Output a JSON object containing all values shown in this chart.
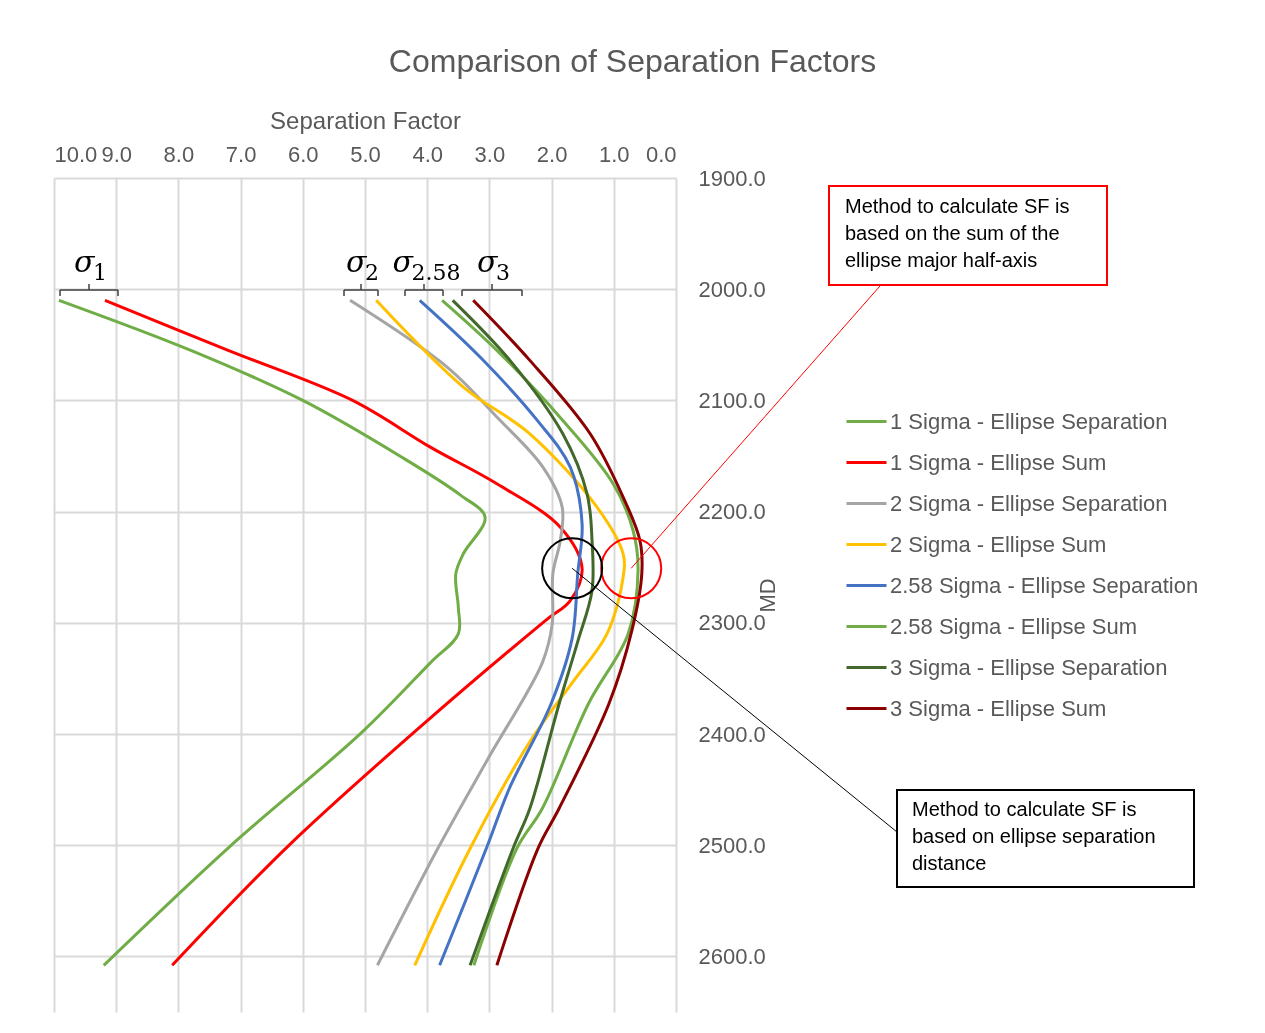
{
  "chart_data": {
    "type": "line",
    "title": "Comparison of Separation Factors",
    "xlabel": "Separation Factor",
    "ylabel": "MD",
    "xlim": [
      10,
      0
    ],
    "xticks": [
      {
        "value": 10,
        "label": "10.0"
      },
      {
        "value": 9,
        "label": "9.0"
      },
      {
        "value": 8,
        "label": "8.0"
      },
      {
        "value": 7,
        "label": "7.0"
      },
      {
        "value": 6,
        "label": "6.0"
      },
      {
        "value": 5,
        "label": "5.0"
      },
      {
        "value": 4,
        "label": "4.0"
      },
      {
        "value": 3,
        "label": "3.0"
      },
      {
        "value": 2,
        "label": "2.0"
      },
      {
        "value": 1,
        "label": "1.0"
      },
      {
        "value": 0,
        "label": "0.0"
      }
    ],
    "ylim": [
      2650,
      1900
    ],
    "yticks": [
      {
        "value": 1900,
        "label": "1900.0"
      },
      {
        "value": 2000,
        "label": "2000.0"
      },
      {
        "value": 2100,
        "label": "2100.0"
      },
      {
        "value": 2200,
        "label": "2200.0"
      },
      {
        "value": 2300,
        "label": "2300.0"
      },
      {
        "value": 2400,
        "label": "2400.0"
      },
      {
        "value": 2500,
        "label": "2500.0"
      },
      {
        "value": 2600,
        "label": "2600.0"
      }
    ],
    "grid": true,
    "legend": "right",
    "series": [
      {
        "name": "1 Sigma - Ellipse Separation",
        "color": "#70ad47",
        "x": [
          9.92,
          7.8,
          6.0,
          4.44,
          3.47,
          3.07,
          3.42,
          3.54,
          3.5,
          3.5,
          3.95,
          5.06,
          7.17,
          9.2
        ],
        "values": [
          2010,
          2055,
          2100,
          2150,
          2185,
          2205,
          2238,
          2256,
          2286,
          2310,
          2336,
          2399,
          2501,
          2608
        ]
      },
      {
        "name": "1 Sigma - Ellipse Sum",
        "color": "#ff0000",
        "x": [
          9.18,
          7.2,
          5.2,
          3.95,
          2.88,
          1.86,
          1.51,
          1.7,
          2.1,
          4.08,
          6.24,
          8.1
        ],
        "values": [
          2010,
          2055,
          2100,
          2142,
          2175,
          2214,
          2251,
          2280,
          2298,
          2392,
          2501,
          2608
        ]
      },
      {
        "name": "2 Sigma - Ellipse Separation",
        "color": "#a5a5a5",
        "x": [
          5.24,
          3.68,
          2.88,
          2.14,
          1.83,
          1.86,
          1.98,
          1.99,
          2.15,
          3.02,
          3.83,
          4.8
        ],
        "values": [
          2010,
          2070,
          2115,
          2160,
          2196,
          2226,
          2256,
          2301,
          2336,
          2422,
          2503,
          2608
        ]
      },
      {
        "name": "2 Sigma - Ellipse Sum",
        "color": "#ffc000",
        "x": [
          4.82,
          3.42,
          2.35,
          1.27,
          0.85,
          0.85,
          1.11,
          1.67,
          2.35,
          3.31,
          4.2
        ],
        "values": [
          2010,
          2088,
          2130,
          2196,
          2238,
          2259,
          2310,
          2354,
          2407,
          2503,
          2608
        ]
      },
      {
        "name": "2.58 Sigma - Ellipse Separation",
        "color": "#4472c4",
        "x": [
          4.12,
          3.15,
          2.23,
          1.7,
          1.51,
          1.58,
          1.67,
          2.01,
          2.68,
          3.05,
          3.8
        ],
        "values": [
          2010,
          2061,
          2118,
          2160,
          2211,
          2256,
          2314,
          2373,
          2449,
          2503,
          2608
        ]
      },
      {
        "name": "2.58 Sigma - Ellipse Sum",
        "color": "#70ad47",
        "x": [
          3.76,
          2.88,
          1.82,
          1.01,
          0.69,
          0.61,
          0.77,
          1.41,
          2.15,
          2.56,
          3.25
        ],
        "values": [
          2010,
          2055,
          2118,
          2175,
          2217,
          2253,
          2310,
          2373,
          2467,
          2503,
          2608
        ]
      },
      {
        "name": "3 Sigma - Ellipse Separation",
        "color": "#43682b",
        "x": [
          3.59,
          2.67,
          1.82,
          1.43,
          1.35,
          1.35,
          1.58,
          1.88,
          2.35,
          2.62,
          3.31
        ],
        "values": [
          2010,
          2064,
          2130,
          2184,
          2226,
          2271,
          2317,
          2373,
          2467,
          2503,
          2608
        ]
      },
      {
        "name": "3 Sigma - Ellipse Sum",
        "color": "#8b0000",
        "x": [
          3.26,
          2.35,
          1.38,
          0.85,
          0.58,
          0.55,
          0.71,
          1.08,
          1.88,
          2.22,
          2.88
        ],
        "values": [
          2010,
          2064,
          2130,
          2187,
          2226,
          2256,
          2307,
          2373,
          2467,
          2503,
          2608
        ]
      }
    ],
    "annotations": [
      "σ$_{1}$",
      "σ$_{2}$",
      "σ$_{2.58}$",
      "σ$_{3}$",
      {
        "text": "Method to calculate SF is based on the sum of the ellipse major half-axis",
        "x": 0.72,
        "y": 2251
      },
      {
        "text": "Method to calculate SF is based on ellipse separation distance",
        "x": 1.67,
        "y": 2251
      }
    ]
  }
}
